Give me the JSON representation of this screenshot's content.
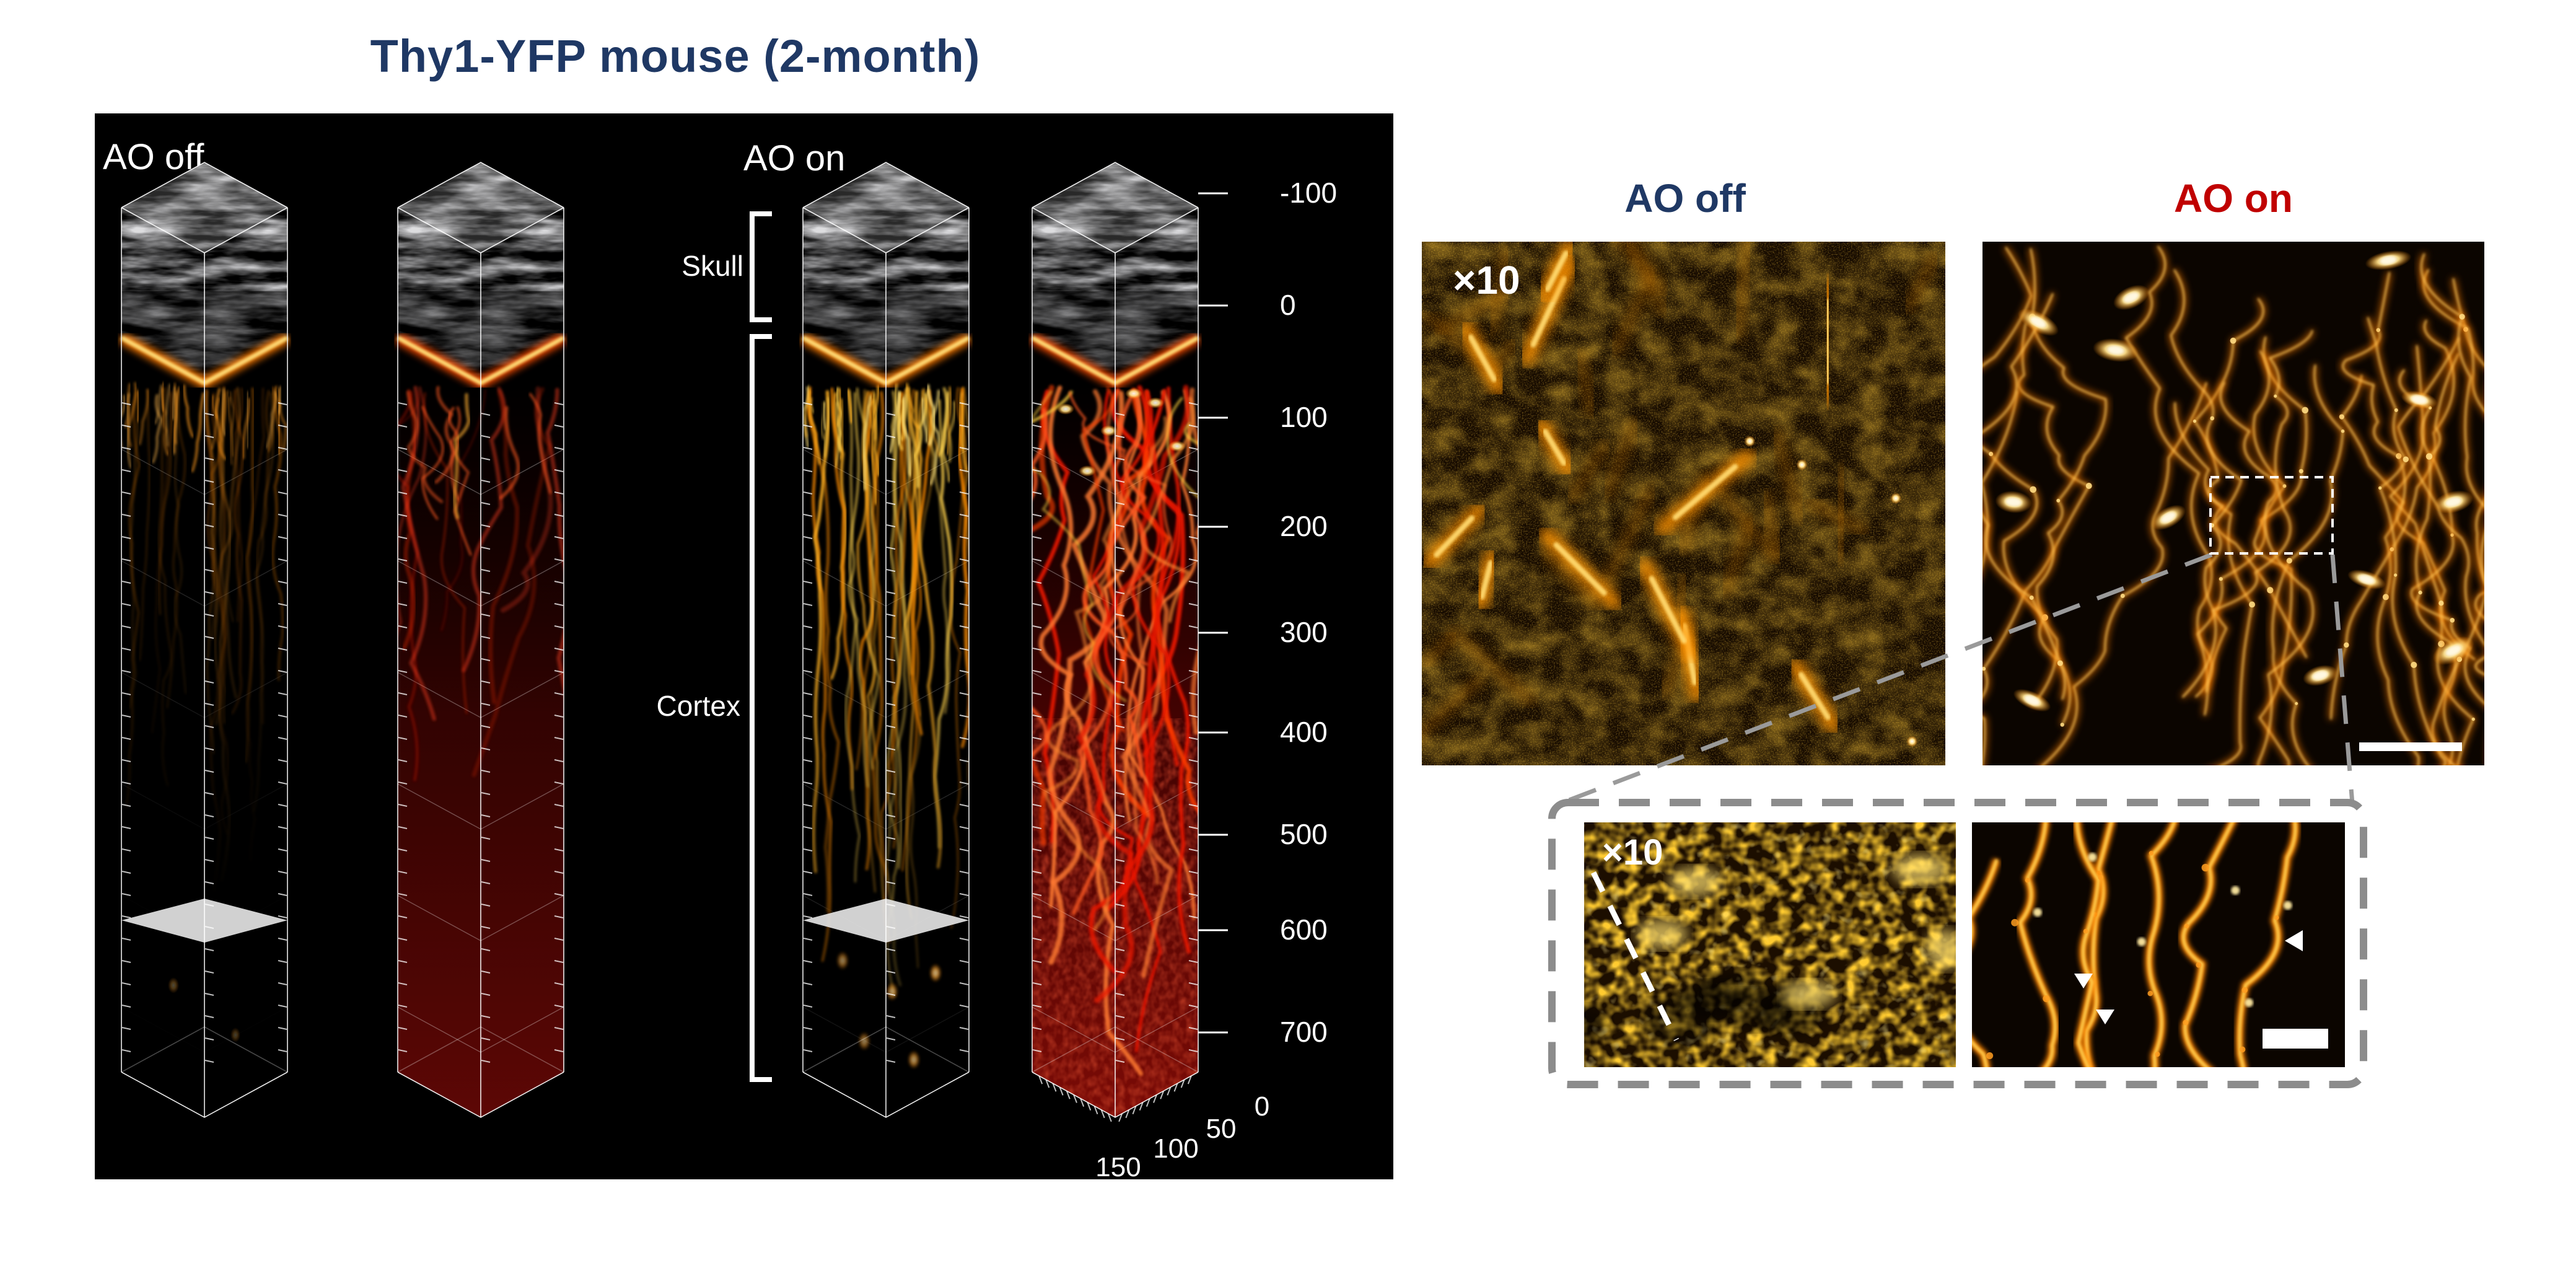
{
  "figure": {
    "title": "Thy1-YFP mouse (2-month)"
  },
  "volume_panel": {
    "ao_off_label": "AO off",
    "ao_on_label": "AO on",
    "skull_label": "Skull",
    "cortex_label": "Cortex",
    "depth_axis": {
      "tick_labels": [
        "-100",
        "0",
        "100",
        "200",
        "300",
        "400",
        "500",
        "600",
        "700"
      ]
    },
    "lateral_axis": {
      "tick_labels": [
        "150",
        "100",
        "50",
        "0"
      ]
    }
  },
  "zoom_panels": {
    "ao_off_header": "AO off",
    "ao_on_header": "AO on",
    "magnification_label": "×10",
    "inset": {
      "magnification_label": "×10"
    }
  },
  "colors": {
    "title_navy": "#1f3864",
    "header_red": "#c00000",
    "yfp_orange": "#ff9e00",
    "yfp_bright": "#ffd24d",
    "vessel_red": "#e81600",
    "vessel_dark": "#5d0705",
    "panel_black": "#000000",
    "dashed_gray": "#8c8c8c",
    "white": "#ffffff"
  }
}
